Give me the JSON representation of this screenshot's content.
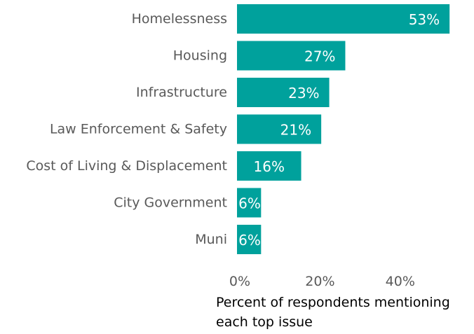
{
  "chart_data": {
    "type": "bar",
    "orientation": "horizontal",
    "categories": [
      "Homelessness",
      "Housing",
      "Infrastructure",
      "Law Enforcement & Safety",
      "Cost of Living & Displacement",
      "City Government",
      "Muni"
    ],
    "values": [
      53,
      27,
      23,
      21,
      16,
      6,
      6
    ],
    "value_labels": [
      "53%",
      "27%",
      "23%",
      "21%",
      "16%",
      "6%",
      "6%"
    ],
    "xlabel": "Percent of respondents mentioning each top issue",
    "ylabel": "",
    "xlim": [
      0,
      55
    ],
    "x_ticks": [
      0,
      20,
      40
    ],
    "x_tick_labels": [
      "0%",
      "20%",
      "40%"
    ],
    "grid": false,
    "legend": "none",
    "bar_color": "#00A19C"
  }
}
